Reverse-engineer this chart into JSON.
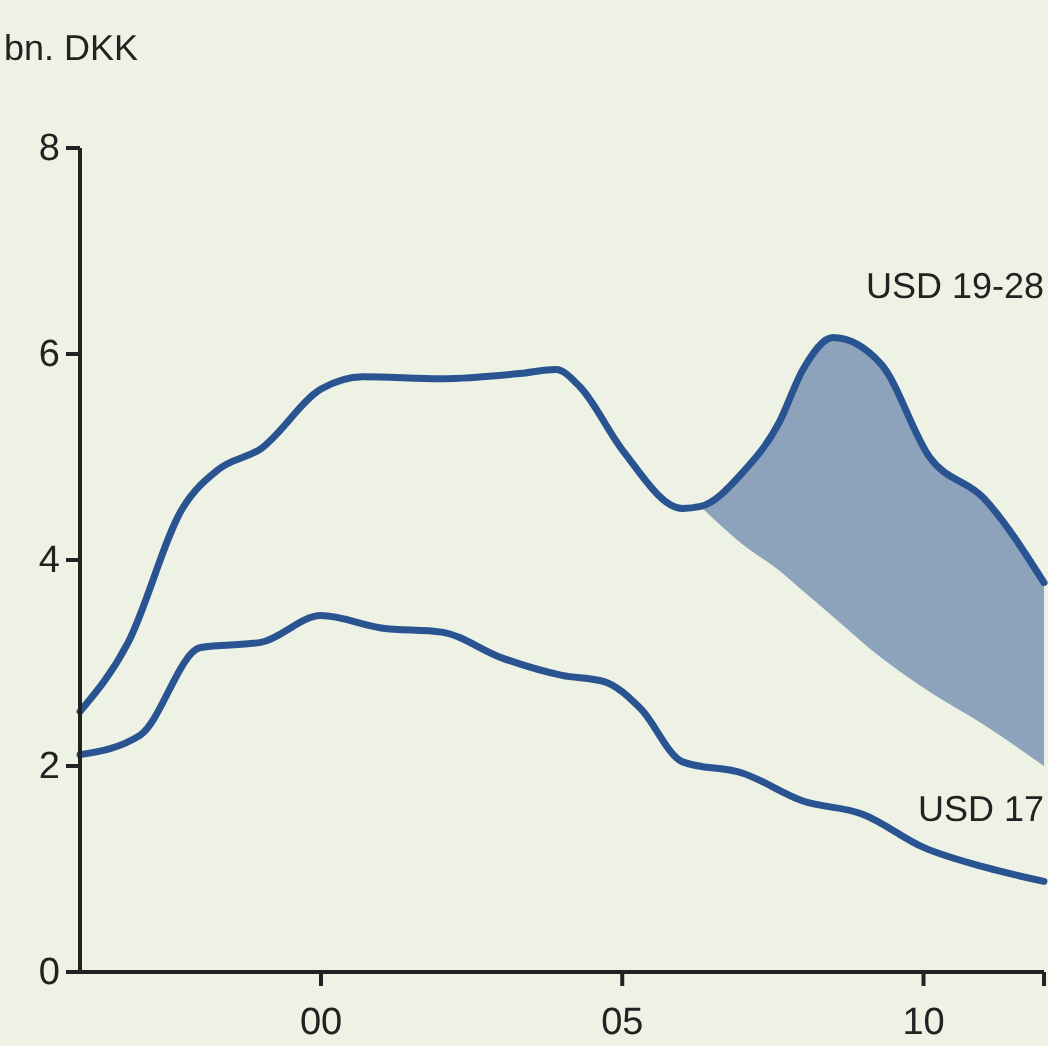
{
  "chart_data": {
    "type": "line",
    "ylabel": "bn. DKK",
    "xlim": [
      1996,
      2012
    ],
    "xticks": [
      {
        "value": 2000,
        "label": "00"
      },
      {
        "value": 2005,
        "label": "05"
      },
      {
        "value": 2010,
        "label": "10"
      },
      {
        "value": 2012,
        "label": null
      }
    ],
    "ylim": [
      0,
      8
    ],
    "yticks": [
      0,
      2,
      4,
      6,
      8
    ],
    "grid": false,
    "legend": false,
    "line_style": "solid",
    "marker": "none",
    "series": [
      {
        "name": "USD 19-28",
        "color": "#2a5491",
        "x": [
          1996,
          1996.8,
          1997.7,
          1998.3,
          1999,
          2000,
          2000.7,
          2002,
          2003.3,
          2003.9,
          2004.3,
          2005,
          2006,
          2006.3,
          2007,
          2007.6,
          2008,
          2008.5,
          2009.3,
          2010.1,
          2011,
          2012
        ],
        "values": [
          2.53,
          3.2,
          4.5,
          4.88,
          5.08,
          5.66,
          5.78,
          5.76,
          5.81,
          5.85,
          5.68,
          5.07,
          4.5,
          4.52,
          4.85,
          5.33,
          5.85,
          6.16,
          5.9,
          5.0,
          4.6,
          3.78
        ],
        "lower": [
          null,
          null,
          null,
          null,
          null,
          null,
          null,
          null,
          null,
          null,
          null,
          null,
          null,
          4.52,
          4.15,
          3.9,
          3.7,
          3.45,
          3.05,
          2.72,
          2.4,
          2.0
        ],
        "upper": [
          null,
          null,
          null,
          null,
          null,
          null,
          null,
          null,
          null,
          null,
          null,
          null,
          null,
          4.52,
          4.85,
          5.33,
          5.85,
          6.16,
          5.9,
          5.0,
          4.6,
          3.78
        ]
      },
      {
        "name": "USD 17",
        "color": "#2a5491",
        "x": [
          1996,
          1997,
          1998,
          1999,
          2000,
          2001,
          2002,
          2003,
          2004,
          2004.7,
          2005.3,
          2006,
          2007,
          2008,
          2009,
          2010,
          2011,
          2012
        ],
        "values": [
          2.11,
          2.3,
          3.15,
          3.2,
          3.46,
          3.34,
          3.3,
          3.05,
          2.88,
          2.82,
          2.56,
          2.04,
          1.93,
          1.66,
          1.53,
          1.21,
          1.02,
          0.88
        ]
      }
    ]
  }
}
